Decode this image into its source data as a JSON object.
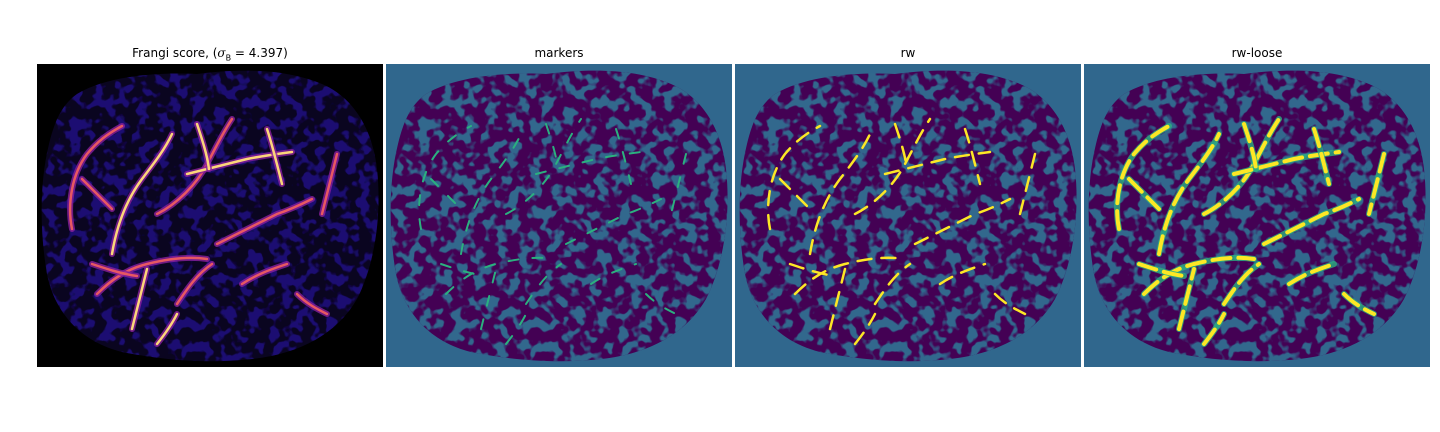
{
  "figure": {
    "panels": [
      {
        "title_prefix": "Frangi score, (",
        "title_sigma": "σ",
        "title_sub": "B",
        "title_suffix": " = 4.397)"
      },
      {
        "title": "markers"
      },
      {
        "title": "rw"
      },
      {
        "title": "rw-loose"
      }
    ]
  },
  "colors": {
    "frangi_background": "#000000",
    "frangi_mesh": "#1b0c72",
    "frangi_vessel_low": "#8a1f9c",
    "frangi_vessel_mid": "#e85862",
    "frangi_vessel_high": "#fcd67a",
    "label_background": "#30678d",
    "label_tissue": "#440154",
    "label_mesh": "#30678d",
    "label_vessel_marker": "#2bb07f",
    "label_vessel_rw": "#fde725"
  }
}
